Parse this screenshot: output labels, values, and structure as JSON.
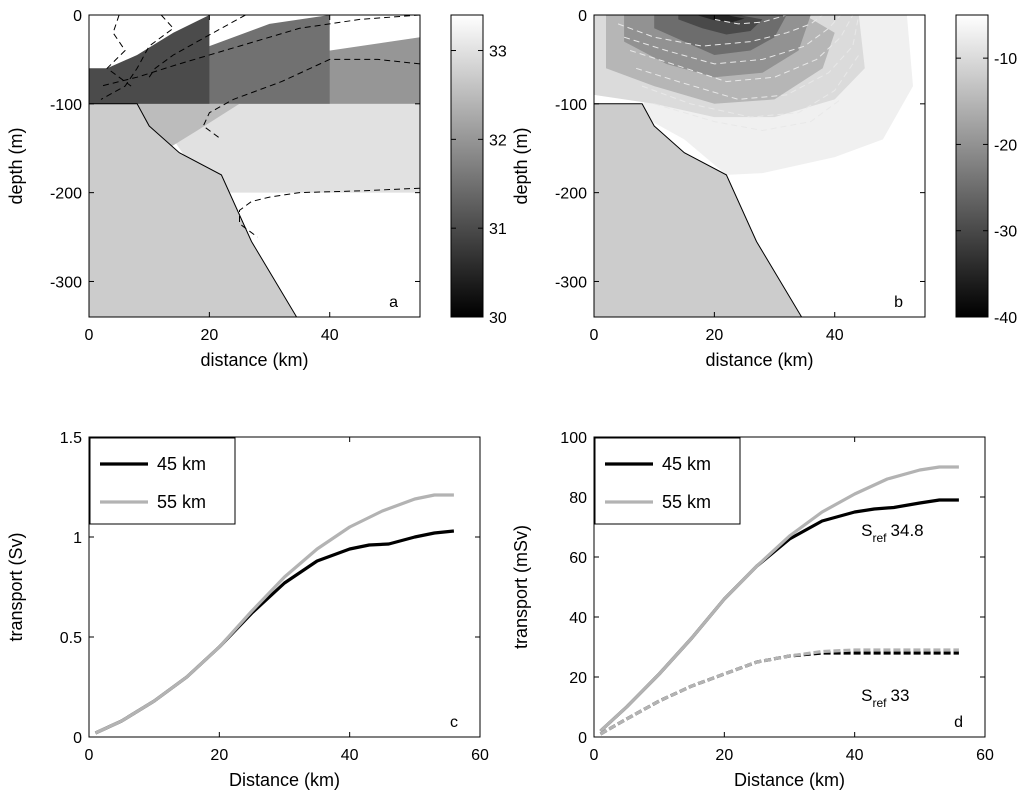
{
  "figure": {
    "panels": [
      {
        "key": "a",
        "kind": "section",
        "xlabel": "distance (km)",
        "ylabel": "depth (m)",
        "xlim": [
          0,
          55
        ],
        "ylim": [
          -340,
          0
        ],
        "xticks": [
          "0",
          "20",
          "40"
        ],
        "yticks": [
          "0",
          "-100",
          "-200",
          "-300"
        ],
        "colorbar": {
          "range": [
            30,
            33.4
          ],
          "ticks": [
            "30",
            "31",
            "32",
            "33"
          ]
        },
        "shelf_line_color": "#000000",
        "contour_line_color": "#000000"
      },
      {
        "key": "b",
        "kind": "section",
        "xlabel": "distance (km)",
        "ylabel": "depth (m)",
        "xlim": [
          0,
          55
        ],
        "ylim": [
          -340,
          0
        ],
        "xticks": [
          "0",
          "20",
          "40"
        ],
        "yticks": [
          "0",
          "-100",
          "-200",
          "-300"
        ],
        "colorbar": {
          "range": [
            -40,
            -5
          ],
          "ticks": [
            "-10",
            "-20",
            "-30",
            "-40"
          ]
        },
        "shelf_line_color": "#000000",
        "contour_line_color": "#e8e8e8"
      }
    ]
  },
  "chart_data": [
    {
      "panel": "a",
      "type": "heatmap",
      "xlabel": "distance (km)",
      "ylabel": "depth (m)",
      "xlim": [
        0,
        55
      ],
      "ylim": [
        -340,
        0
      ],
      "xticks": [
        0,
        20,
        40
      ],
      "yticks": [
        0,
        -100,
        -200,
        -300
      ],
      "colorbar": {
        "range": [
          30,
          33.4
        ],
        "ticks": [
          30,
          31,
          32,
          33
        ]
      },
      "bathymetry": {
        "x": [
          0,
          8,
          10,
          15,
          22,
          27,
          34.5
        ],
        "depth": [
          -100,
          -100,
          -125,
          -155,
          -180,
          -255,
          -340
        ]
      },
      "filled_contours": [
        {
          "value": 33,
          "x": [
            8,
            10,
            13,
            15,
            17,
            22,
            28,
            34,
            55,
            55,
            22
          ],
          "depth": [
            -100,
            -110,
            -130,
            -150,
            -170,
            -200,
            -200,
            -200,
            -200,
            -50,
            -50
          ]
        },
        {
          "value": 32.5,
          "x": [
            0,
            55,
            55,
            35,
            25,
            18,
            12,
            8,
            0
          ],
          "depth": [
            -100,
            -100,
            -40,
            -60,
            -100,
            -130,
            -155,
            -135,
            -100
          ]
        },
        {
          "value": 32,
          "x": [
            0,
            55,
            55,
            35,
            25,
            15,
            8,
            0
          ],
          "depth": [
            -100,
            -100,
            -25,
            -45,
            -70,
            -90,
            -100,
            -100
          ]
        },
        {
          "value": 31.5,
          "x": [
            0,
            40,
            40,
            30,
            20,
            12,
            5,
            0
          ],
          "depth": [
            -100,
            -100,
            0,
            -10,
            -35,
            -60,
            -75,
            -80
          ]
        },
        {
          "value": 31,
          "x": [
            0,
            20,
            20,
            14,
            8,
            3,
            0
          ],
          "depth": [
            -100,
            -100,
            0,
            -20,
            -45,
            -60,
            -60
          ]
        }
      ],
      "contours": [
        {
          "x": [
            5,
            4,
            6,
            3,
            7
          ],
          "depth": [
            0,
            -20,
            -40,
            -60,
            -80
          ]
        },
        {
          "x": [
            12,
            14,
            10,
            8,
            6,
            2
          ],
          "depth": [
            0,
            -15,
            -35,
            -60,
            -80,
            -95
          ]
        },
        {
          "x": [
            26,
            22,
            18,
            14,
            11,
            10
          ],
          "depth": [
            0,
            -15,
            -30,
            -45,
            -60,
            -70
          ]
        },
        {
          "x": [
            55,
            45,
            35,
            25,
            15,
            8,
            2
          ],
          "depth": [
            0,
            -5,
            -15,
            -35,
            -55,
            -70,
            -80
          ]
        },
        {
          "x": [
            55,
            48,
            40,
            32,
            24,
            20,
            19,
            22
          ],
          "depth": [
            -55,
            -50,
            -50,
            -75,
            -95,
            -110,
            -125,
            -140
          ]
        },
        {
          "x": [
            55,
            45,
            35,
            30,
            27,
            25,
            25,
            28
          ],
          "depth": [
            -195,
            -198,
            -200,
            -205,
            -210,
            -220,
            -235,
            -250
          ]
        }
      ],
      "label": "a"
    },
    {
      "panel": "b",
      "type": "heatmap",
      "xlabel": "distance (km)",
      "ylabel": "depth (m)",
      "xlim": [
        0,
        55
      ],
      "ylim": [
        -340,
        0
      ],
      "xticks": [
        0,
        20,
        40
      ],
      "yticks": [
        0,
        -100,
        -200,
        -300
      ],
      "colorbar": {
        "range": [
          -40,
          -5
        ],
        "ticks": [
          -10,
          -20,
          -30,
          -40
        ]
      },
      "bathymetry": {
        "x": [
          0,
          8,
          10,
          15,
          22,
          27,
          34.5
        ],
        "depth": [
          -100,
          -100,
          -125,
          -155,
          -180,
          -255,
          -340
        ]
      },
      "filled_contours": [
        {
          "value": -7,
          "x": [
            7,
            15,
            22,
            28,
            40,
            48,
            53,
            52,
            45,
            30,
            20,
            7
          ],
          "depth": [
            -110,
            -140,
            -180,
            -178,
            -160,
            -140,
            -80,
            0,
            0,
            0,
            0,
            -110
          ]
        },
        {
          "value": -10,
          "x": [
            0,
            10,
            20,
            30,
            40,
            45,
            44,
            40,
            30,
            20,
            10,
            0
          ],
          "depth": [
            -90,
            -100,
            -115,
            -115,
            -95,
            -60,
            0,
            0,
            0,
            0,
            0,
            0
          ]
        },
        {
          "value": -15,
          "x": [
            2,
            10,
            20,
            30,
            38,
            40,
            35,
            25,
            12,
            2
          ],
          "depth": [
            -60,
            -80,
            -100,
            -95,
            -60,
            -20,
            0,
            0,
            0,
            0
          ]
        },
        {
          "value": -20,
          "x": [
            5,
            12,
            20,
            28,
            34,
            36,
            30,
            20,
            12,
            5
          ],
          "depth": [
            -30,
            -55,
            -70,
            -65,
            -40,
            0,
            0,
            0,
            0,
            0
          ]
        },
        {
          "value": -25,
          "x": [
            10,
            15,
            20,
            26,
            30,
            32,
            26,
            20,
            14,
            10
          ],
          "depth": [
            -15,
            -30,
            -45,
            -40,
            -25,
            0,
            0,
            0,
            0,
            0
          ]
        },
        {
          "value": -30,
          "x": [
            14,
            18,
            22,
            26,
            28,
            24,
            18,
            14
          ],
          "depth": [
            -5,
            -15,
            -22,
            -18,
            -5,
            0,
            0,
            0
          ]
        },
        {
          "value": -35,
          "x": [
            17,
            20,
            23,
            25,
            22,
            17
          ],
          "depth": [
            0,
            -6,
            -8,
            -4,
            0,
            0
          ]
        }
      ],
      "contours": [
        {
          "x": [
            4,
            10,
            18,
            26,
            32,
            36,
            38
          ],
          "depth": [
            -10,
            -25,
            -35,
            -30,
            -20,
            -10,
            0
          ]
        },
        {
          "x": [
            5,
            12,
            20,
            28,
            35,
            39,
            41
          ],
          "depth": [
            -25,
            -40,
            -55,
            -50,
            -35,
            -15,
            0
          ]
        },
        {
          "x": [
            6,
            13,
            22,
            30,
            37,
            41,
            43
          ],
          "depth": [
            -40,
            -55,
            -75,
            -70,
            -50,
            -25,
            0
          ]
        },
        {
          "x": [
            7,
            14,
            24,
            32,
            39,
            43,
            44
          ],
          "depth": [
            -60,
            -75,
            -95,
            -90,
            -65,
            -35,
            0
          ]
        },
        {
          "x": [
            8,
            16,
            26,
            34,
            40,
            44
          ],
          "depth": [
            -80,
            -100,
            -115,
            -110,
            -85,
            -45
          ]
        },
        {
          "x": [
            10,
            20,
            28,
            36,
            41
          ],
          "depth": [
            -100,
            -120,
            -130,
            -120,
            -95
          ]
        },
        {
          "x": [
            20,
            24,
            28,
            32
          ],
          "depth": [
            -5,
            -10,
            -8,
            0
          ]
        }
      ],
      "label": "b"
    },
    {
      "panel": "c",
      "type": "line",
      "xlabel": "Distance (km)",
      "ylabel": "transport (Sv)",
      "xlim": [
        0,
        60
      ],
      "ylim": [
        0,
        1.5
      ],
      "xticks": [
        0,
        20,
        40,
        60
      ],
      "yticks": [
        0,
        0.5,
        1,
        1.5
      ],
      "legend": "top-left",
      "series": [
        {
          "name": "45 km",
          "color": "#000000",
          "dash": "solid",
          "x": [
            1,
            5,
            10,
            15,
            20,
            25,
            30,
            35,
            40,
            43,
            46,
            50,
            53,
            56
          ],
          "y": [
            0.02,
            0.08,
            0.18,
            0.3,
            0.45,
            0.62,
            0.77,
            0.88,
            0.94,
            0.96,
            0.965,
            1.0,
            1.02,
            1.03
          ]
        },
        {
          "name": "55 km",
          "color": "#b3b3b3",
          "dash": "solid",
          "x": [
            1,
            5,
            10,
            15,
            20,
            25,
            30,
            35,
            40,
            45,
            50,
            53,
            56
          ],
          "y": [
            0.02,
            0.08,
            0.18,
            0.3,
            0.45,
            0.63,
            0.8,
            0.94,
            1.05,
            1.13,
            1.19,
            1.21,
            1.21
          ]
        }
      ],
      "label": "c"
    },
    {
      "panel": "d",
      "type": "line",
      "xlabel": "Distance (km)",
      "ylabel": "transport (mSv)",
      "xlim": [
        0,
        60
      ],
      "ylim": [
        0,
        100
      ],
      "xticks": [
        0,
        20,
        40,
        60
      ],
      "yticks": [
        0,
        20,
        40,
        60,
        80,
        100
      ],
      "legend": "top-left",
      "series": [
        {
          "name": "45 km",
          "color": "#000000",
          "dash": "solid",
          "x": [
            1,
            5,
            10,
            15,
            20,
            25,
            30,
            35,
            40,
            43,
            46,
            50,
            53,
            56
          ],
          "y": [
            2,
            10,
            21,
            33,
            46,
            57,
            66,
            72,
            75,
            76,
            76.5,
            78,
            79,
            79
          ]
        },
        {
          "color": "#b3b3b3",
          "dash": "solid",
          "x": [
            1,
            5,
            10,
            15,
            20,
            25,
            30,
            35,
            40,
            45,
            50,
            53,
            56
          ],
          "y": [
            2,
            10,
            21,
            33,
            46,
            57,
            67,
            75,
            81,
            86,
            89,
            90,
            90
          ]
        },
        {
          "color": "#000000",
          "dash": "dashed",
          "x": [
            1,
            5,
            10,
            15,
            20,
            25,
            30,
            35,
            40,
            45,
            50,
            56
          ],
          "y": [
            1,
            6,
            12,
            17,
            21,
            25,
            27,
            28,
            28,
            28,
            28,
            28
          ]
        },
        {
          "color": "#b3b3b3",
          "dash": "dashed",
          "x": [
            1,
            5,
            10,
            15,
            20,
            25,
            30,
            35,
            40,
            45,
            50,
            56
          ],
          "y": [
            1,
            6,
            12,
            17,
            21,
            25,
            27,
            28.5,
            29,
            29,
            29,
            29
          ]
        }
      ],
      "legend_entries": [
        {
          "name": "45 km",
          "color": "#000000"
        },
        {
          "name": "55 km",
          "color": "#b3b3b3"
        }
      ],
      "annotations": [
        {
          "text_main": "S",
          "text_sub": "ref",
          "text_rest": "34.8",
          "x": 41,
          "y": 67
        },
        {
          "text_main": "S",
          "text_sub": "ref",
          "text_rest": "33",
          "x": 41,
          "y": 12
        }
      ],
      "label": "d"
    }
  ]
}
